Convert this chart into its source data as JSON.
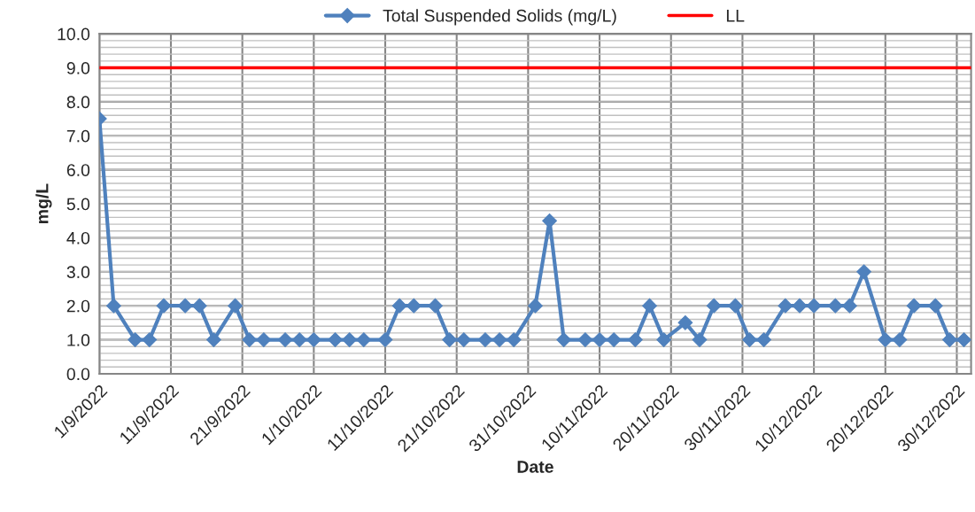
{
  "chart_data": {
    "type": "line",
    "xlabel": "Date",
    "ylabel": "mg/L",
    "x": [
      "2022-09-01",
      "2022-09-03",
      "2022-09-06",
      "2022-09-08",
      "2022-09-10",
      "2022-09-13",
      "2022-09-15",
      "2022-09-17",
      "2022-09-20",
      "2022-09-22",
      "2022-09-24",
      "2022-09-27",
      "2022-09-29",
      "2022-10-01",
      "2022-10-04",
      "2022-10-06",
      "2022-10-08",
      "2022-10-11",
      "2022-10-13",
      "2022-10-15",
      "2022-10-18",
      "2022-10-20",
      "2022-10-22",
      "2022-10-25",
      "2022-10-27",
      "2022-10-29",
      "2022-11-01",
      "2022-11-03",
      "2022-11-05",
      "2022-11-08",
      "2022-11-10",
      "2022-11-12",
      "2022-11-15",
      "2022-11-17",
      "2022-11-19",
      "2022-11-22",
      "2022-11-24",
      "2022-11-26",
      "2022-11-29",
      "2022-12-01",
      "2022-12-03",
      "2022-12-06",
      "2022-12-08",
      "2022-12-10",
      "2022-12-13",
      "2022-12-15",
      "2022-12-17",
      "2022-12-20",
      "2022-12-22",
      "2022-12-24",
      "2022-12-27",
      "2022-12-29",
      "2022-12-31"
    ],
    "series": [
      {
        "name": "Total Suspended Solids (mg/L)",
        "color": "#4f81bd",
        "marker": "diamond",
        "values": [
          7.5,
          2,
          1,
          1,
          2,
          2,
          2,
          1,
          2,
          1,
          1,
          1,
          1,
          1,
          1,
          1,
          1,
          1,
          2,
          2,
          2,
          1,
          1,
          1,
          1,
          1,
          2,
          4.5,
          1,
          1,
          1,
          1,
          1,
          2,
          1,
          1.5,
          1,
          2,
          2,
          1,
          1,
          2,
          2,
          2,
          2,
          2,
          3,
          1,
          1,
          2,
          2,
          1,
          1
        ]
      }
    ],
    "ref_lines": [
      {
        "axis": "y",
        "value": 9.0,
        "label": "LL",
        "color": "#ff0000"
      }
    ],
    "xlim": [
      "2022-09-01",
      "2023-01-01"
    ],
    "xticks": [
      {
        "value": "2022-09-01",
        "label": "1/9/2022"
      },
      {
        "value": "2022-09-11",
        "label": "11/9/2022"
      },
      {
        "value": "2022-09-21",
        "label": "21/9/2022"
      },
      {
        "value": "2022-10-01",
        "label": "1/10/2022"
      },
      {
        "value": "2022-10-11",
        "label": "11/10/2022"
      },
      {
        "value": "2022-10-21",
        "label": "21/10/2022"
      },
      {
        "value": "2022-10-31",
        "label": "31/10/2022"
      },
      {
        "value": "2022-11-10",
        "label": "10/11/2022"
      },
      {
        "value": "2022-11-20",
        "label": "20/11/2022"
      },
      {
        "value": "2022-11-30",
        "label": "30/11/2022"
      },
      {
        "value": "2022-12-10",
        "label": "10/12/2022"
      },
      {
        "value": "2022-12-20",
        "label": "20/12/2022"
      },
      {
        "value": "2022-12-30",
        "label": "30/12/2022"
      }
    ],
    "ylim": [
      0,
      10
    ],
    "yticks": [
      {
        "value": 0,
        "label": "0.0"
      },
      {
        "value": 1,
        "label": "1.0"
      },
      {
        "value": 2,
        "label": "2.0"
      },
      {
        "value": 3,
        "label": "3.0"
      },
      {
        "value": 4,
        "label": "4.0"
      },
      {
        "value": 5,
        "label": "5.0"
      },
      {
        "value": 6,
        "label": "6.0"
      },
      {
        "value": 7,
        "label": "7.0"
      },
      {
        "value": 8,
        "label": "8.0"
      },
      {
        "value": 9,
        "label": "9.0"
      },
      {
        "value": 10,
        "label": "10.0"
      }
    ],
    "grid": true,
    "legend": "top",
    "line_style": "solid"
  }
}
